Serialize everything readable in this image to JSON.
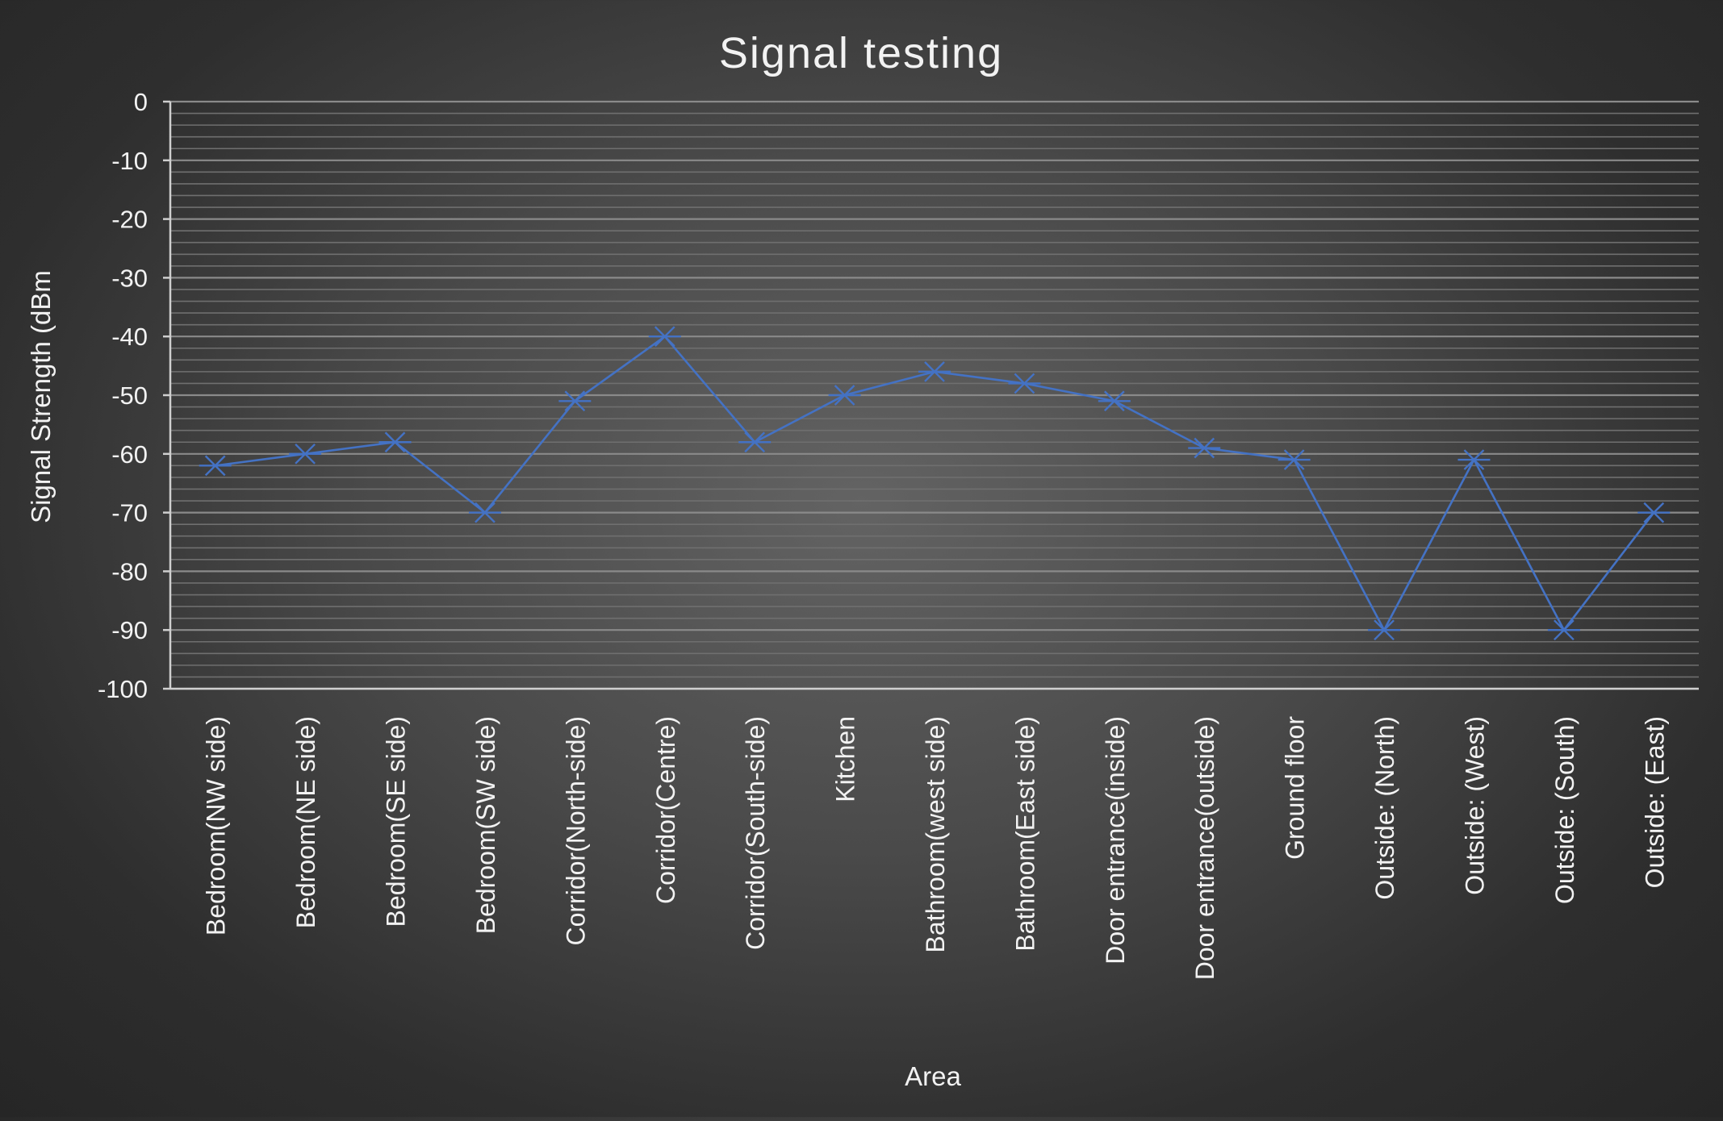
{
  "chart_data": {
    "type": "line",
    "title": "Signal testing",
    "xlabel": "Area",
    "ylabel": "Signal Strength (dBm",
    "ylim": [
      -100,
      0
    ],
    "y_major_step": 10,
    "y_ticks": [
      "0",
      "-10",
      "-20",
      "-30",
      "-40",
      "-50",
      "-60",
      "-70",
      "-80",
      "-90",
      "-100"
    ],
    "grid": true,
    "legend": "none",
    "categories": [
      "Bedroom(NW side)",
      "Bedroom(NE side)",
      "Bedroom(SE side)",
      "Bedroom(SW side)",
      "Corridor(North-side)",
      "Corridor(Centre)",
      "Corridor(South-side)",
      "Kitchen",
      "Bathroom(west side)",
      "Bathroom(East side)",
      "Door entrance(inside)",
      "Door entrance(outside)",
      "Ground floor",
      "Outside: (North)",
      "Outside: (West)",
      "Outside: (South)",
      "Outside: (East)"
    ],
    "series": [
      {
        "values": [
          -62,
          -60,
          -58,
          -70,
          -51,
          -40,
          -58,
          -50,
          -46,
          -48,
          -51,
          -59,
          -61,
          -90,
          -61,
          -90,
          -70
        ],
        "color": "#4472C4",
        "marker": "star"
      }
    ],
    "colors": {
      "line": "#4472C4",
      "text": "#f2f2f2",
      "grid_major": "#8a8a8a",
      "grid_minor": "#6f6f6f",
      "axis": "#cfcfcf"
    }
  }
}
